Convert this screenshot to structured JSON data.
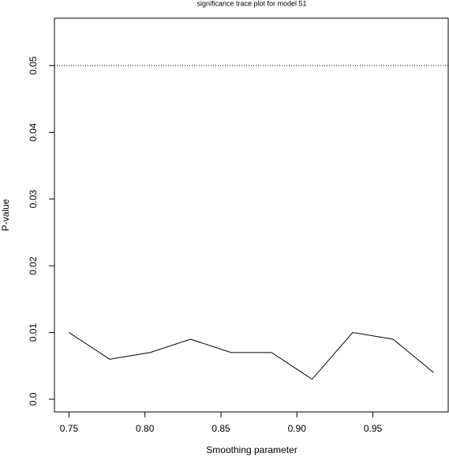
{
  "chart_data": {
    "type": "line",
    "title": "significance trace plot for model 51",
    "xlabel": "Smoothing parameter",
    "ylabel": "P-value",
    "x": [
      0.75,
      0.7767,
      0.8033,
      0.83,
      0.8567,
      0.8833,
      0.91,
      0.9367,
      0.9633,
      0.99
    ],
    "series": [
      {
        "color": "#000000",
        "values": [
          0.01,
          0.006,
          0.007,
          0.009,
          0.007,
          0.007,
          0.003,
          0.01,
          0.009,
          0.004
        ]
      }
    ],
    "hline": 0.05,
    "xlim": [
      0.7404,
      0.9996
    ],
    "ylim": [
      -0.0019,
      0.0571
    ],
    "xticks": [
      0.75,
      {
        "value": 0.8,
        "label": "0.80"
      },
      0.85,
      {
        "value": 0.9,
        "label": "0.90"
      },
      0.95
    ],
    "yticks": [
      {
        "value": 0,
        "label": "0.0"
      },
      0.01,
      0.02,
      0.03,
      0.04,
      0.05
    ],
    "grid": false
  }
}
